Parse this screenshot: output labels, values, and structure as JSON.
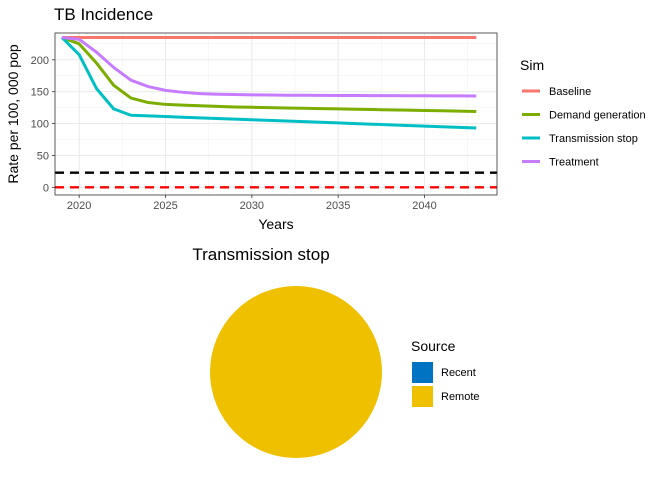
{
  "chart_data": [
    {
      "type": "line",
      "title": "TB Incidence",
      "xlabel": "Years",
      "ylabel": "Rate per 100, 000 pop",
      "xlim": [
        2018.6,
        2044.2
      ],
      "ylim": [
        -12,
        242
      ],
      "x_ticks": [
        2020,
        2025,
        2030,
        2035,
        2040
      ],
      "x_tick_labels": [
        "2020",
        "2025",
        "2030",
        "2035",
        "2040"
      ],
      "y_ticks": [
        0,
        50,
        100,
        150,
        200
      ],
      "y_tick_labels": [
        "0",
        "50",
        "100",
        "150",
        "200"
      ],
      "grid": true,
      "legend_title": "Sim",
      "legend_position": "right",
      "x": [
        2019,
        2020,
        2021,
        2022,
        2023,
        2024,
        2025,
        2026,
        2027,
        2028,
        2029,
        2030,
        2031,
        2032,
        2033,
        2034,
        2035,
        2036,
        2037,
        2038,
        2039,
        2040,
        2041,
        2042,
        2043
      ],
      "series": [
        {
          "name": "Baseline",
          "color": "#F8766D",
          "values": [
            235,
            235,
            235,
            235,
            235,
            235,
            235,
            235,
            235,
            235,
            235,
            235,
            235,
            235,
            235,
            235,
            235,
            235,
            235,
            235,
            235,
            235,
            235,
            235,
            235
          ]
        },
        {
          "name": "Demand generation",
          "color": "#7CAE00",
          "values": [
            235,
            225,
            195,
            160,
            140,
            133,
            130,
            129,
            128,
            127,
            126,
            125.5,
            125,
            124.5,
            124,
            123.5,
            123,
            122.5,
            122,
            121.5,
            121,
            120.5,
            120,
            119.5,
            119
          ]
        },
        {
          "name": "Transmission stop",
          "color": "#00BFC4",
          "values": [
            235,
            208,
            155,
            123,
            113,
            112,
            111,
            110,
            109,
            108,
            107,
            106,
            105,
            104,
            103,
            102,
            101,
            100,
            99,
            98,
            97,
            96,
            95,
            94,
            93
          ]
        },
        {
          "name": "Treatment",
          "color": "#C77CFF",
          "values": [
            235,
            232,
            212,
            188,
            168,
            158,
            152,
            149,
            147,
            146,
            145.5,
            145,
            144.8,
            144.5,
            144.3,
            144.2,
            144.1,
            144,
            143.9,
            143.8,
            143.7,
            143.6,
            143.5,
            143.4,
            143.3
          ]
        }
      ],
      "reference_lines": [
        {
          "y": 23,
          "color": "#000000",
          "style": "dashed"
        },
        {
          "y": 0,
          "color": "#FF0000",
          "style": "dashed"
        }
      ]
    },
    {
      "type": "pie",
      "title": "Transmission stop",
      "legend_title": "Source",
      "legend_position": "right",
      "categories": [
        "Recent",
        "Remote"
      ],
      "values": [
        0,
        100
      ],
      "colors": [
        "#0073C2",
        "#EFC000"
      ]
    }
  ]
}
